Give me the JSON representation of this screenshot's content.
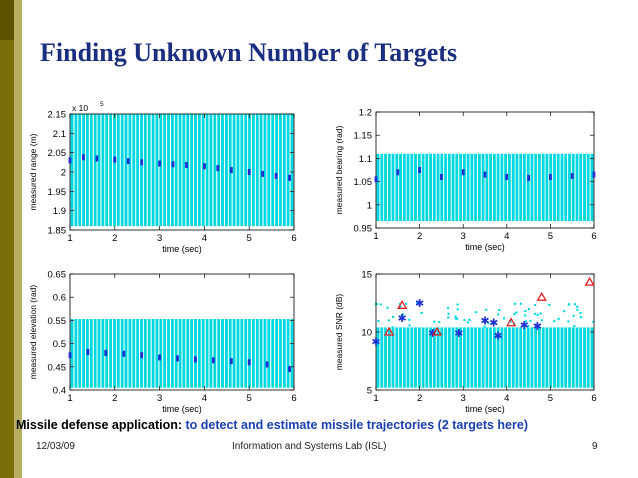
{
  "slide": {
    "title": "Finding Unknown Number of Targets",
    "caption_lead": "Missile defense application:",
    "caption_body": "to detect and estimate missile trajectories (2 targets here)",
    "footer_date": "12/03/09",
    "footer_center": "Information and Systems Lab (ISL)",
    "footer_page": "9"
  },
  "colors": {
    "title": "#1a2e80",
    "clutter": "#00d8e0",
    "track": "#1f2fd0",
    "caption_body": "#1a3fb0",
    "sidebar": "#7a6e0a",
    "triangle": "#e02020"
  },
  "chart_data": [
    {
      "type": "scatter",
      "id": "range",
      "ylabel": "measured range (m)",
      "xlabel": "time (sec)",
      "exponent": "x 10",
      "exponent_power": "5",
      "xlim": [
        1,
        6
      ],
      "ylim": [
        1.85,
        2.15
      ],
      "xticks": [
        1,
        2,
        3,
        4,
        5,
        6
      ],
      "xtick_labels": [
        "1",
        "2",
        "3",
        "4",
        "5",
        "6"
      ],
      "yticks": [
        1.85,
        1.9,
        1.95,
        2,
        2.05,
        2.1,
        2.15
      ],
      "ytick_labels": [
        "1.85",
        "1.9",
        "1.95",
        "2",
        "2.05",
        "2.1",
        "2.15"
      ],
      "clutter_range": [
        1.86,
        2.15
      ],
      "track": {
        "t": [
          1.0,
          1.3,
          1.6,
          2.0,
          2.3,
          2.6,
          3.0,
          3.3,
          3.6,
          4.0,
          4.3,
          4.6,
          5.0,
          5.3,
          5.6,
          5.9
        ],
        "v": [
          2.03,
          2.038,
          2.035,
          2.032,
          2.028,
          2.025,
          2.022,
          2.02,
          2.018,
          2.015,
          2.01,
          2.005,
          2.0,
          1.995,
          1.99,
          1.985
        ]
      }
    },
    {
      "type": "scatter",
      "id": "bearing",
      "ylabel": "measured bearing (rad)",
      "xlabel": "time (sec)",
      "xlim": [
        1,
        6
      ],
      "ylim": [
        0.95,
        1.2
      ],
      "xticks": [
        1,
        2,
        3,
        4,
        5,
        6
      ],
      "xtick_labels": [
        "1",
        "2",
        "3",
        "4",
        "5",
        "6"
      ],
      "yticks": [
        0.95,
        1,
        1.05,
        1.1,
        1.15,
        1.2
      ],
      "ytick_labels": [
        "0.95",
        "1",
        "1.05",
        "1.1",
        "1.15",
        "1.2"
      ],
      "clutter_range": [
        0.965,
        1.11
      ],
      "track": {
        "t": [
          1.0,
          1.5,
          2.0,
          2.5,
          3.0,
          3.5,
          4.0,
          4.5,
          5.0,
          5.5,
          6.0
        ],
        "v": [
          1.055,
          1.07,
          1.075,
          1.06,
          1.07,
          1.065,
          1.06,
          1.058,
          1.06,
          1.062,
          1.065
        ]
      }
    },
    {
      "type": "scatter",
      "id": "elevation",
      "ylabel": "measured elevation (rad)",
      "xlabel": "time (sec)",
      "xlim": [
        1,
        6
      ],
      "ylim": [
        0.4,
        0.65
      ],
      "xticks": [
        1,
        2,
        3,
        4,
        5,
        6
      ],
      "xtick_labels": [
        "1",
        "2",
        "3",
        "4",
        "5",
        "6"
      ],
      "yticks": [
        0.4,
        0.45,
        0.5,
        0.55,
        0.6,
        0.65
      ],
      "ytick_labels": [
        "0.4",
        "0.45",
        "0.5",
        "0.55",
        "0.6",
        "0.65"
      ],
      "clutter_range": [
        0.405,
        0.553
      ],
      "track": {
        "t": [
          1.0,
          1.4,
          1.8,
          2.2,
          2.6,
          3.0,
          3.4,
          3.8,
          4.2,
          4.6,
          5.0,
          5.4,
          5.9
        ],
        "v": [
          0.475,
          0.482,
          0.48,
          0.478,
          0.475,
          0.47,
          0.468,
          0.466,
          0.464,
          0.462,
          0.46,
          0.455,
          0.445
        ]
      }
    },
    {
      "type": "scatter",
      "id": "snr",
      "ylabel": "measured SNR (dB)",
      "xlabel": "time (sec)",
      "xlim": [
        1,
        6
      ],
      "ylim": [
        5,
        15
      ],
      "xticks": [
        1,
        2,
        3,
        4,
        5,
        6
      ],
      "xtick_labels": [
        "1",
        "2",
        "3",
        "4",
        "5",
        "6"
      ],
      "yticks": [
        5,
        10,
        15
      ],
      "ytick_labels": [
        "5",
        "10",
        "15"
      ],
      "clutter_range": [
        5.2,
        10.4
      ],
      "track": {
        "t": [
          1.0,
          1.6,
          2.0,
          2.3,
          2.9,
          3.5,
          3.7,
          3.8,
          4.4,
          4.7
        ],
        "v": [
          9.2,
          11.2,
          12.5,
          9.9,
          9.9,
          11.0,
          10.8,
          9.7,
          10.6,
          10.5
        ]
      },
      "triangles": {
        "t": [
          1.3,
          1.6,
          2.4,
          4.1,
          4.8,
          5.9
        ],
        "v": [
          10.0,
          12.3,
          10.0,
          10.8,
          13.0,
          14.3
        ]
      }
    }
  ]
}
